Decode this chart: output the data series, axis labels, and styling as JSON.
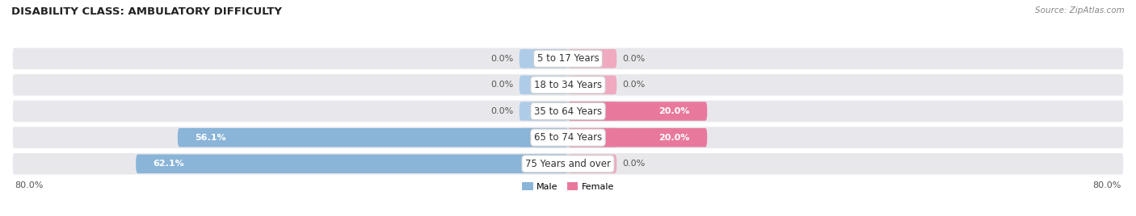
{
  "title": "DISABILITY CLASS: AMBULATORY DIFFICULTY",
  "source": "Source: ZipAtlas.com",
  "categories": [
    "5 to 17 Years",
    "18 to 34 Years",
    "35 to 64 Years",
    "65 to 74 Years",
    "75 Years and over"
  ],
  "male_values": [
    0.0,
    0.0,
    0.0,
    56.1,
    62.1
  ],
  "female_values": [
    0.0,
    0.0,
    20.0,
    20.0,
    0.0
  ],
  "male_color": "#8ab4d8",
  "female_color": "#e8799d",
  "male_stub_color": "#aecce8",
  "female_stub_color": "#f0aabf",
  "row_bg_color": "#e8e8ec",
  "row_separator_color": "#ffffff",
  "max_val": 80.0,
  "stub_size": 7.0,
  "legend_male": "Male",
  "legend_female": "Female",
  "title_fontsize": 9.5,
  "source_fontsize": 7.5,
  "label_fontsize": 8.0,
  "category_fontsize": 8.5,
  "value_fontsize": 8.0
}
